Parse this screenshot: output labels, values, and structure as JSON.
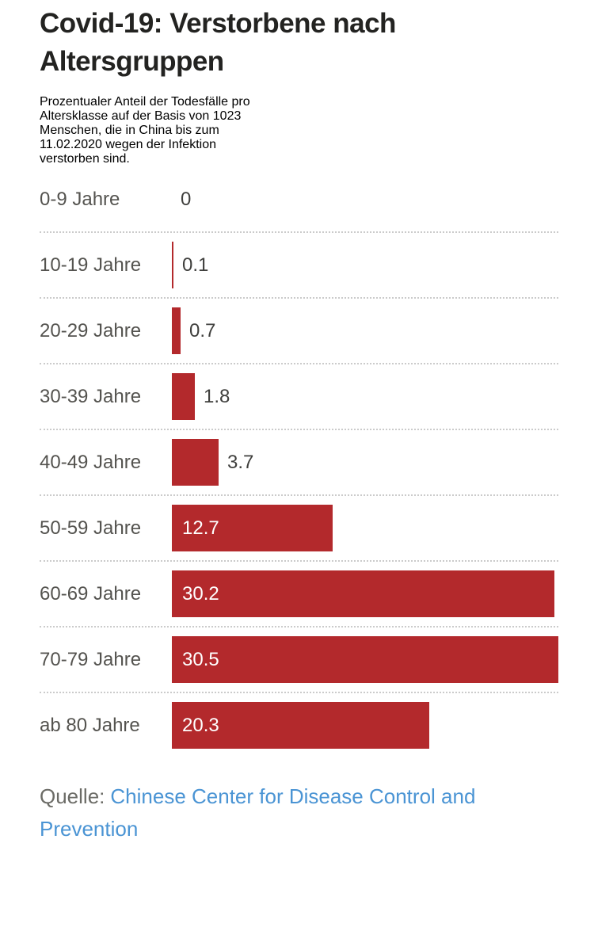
{
  "header": {
    "title": "Covid-19: Verstorbene nach Altersgruppen",
    "title_lines": [
      "Covid-19: Verstorbene nach",
      "Altersgruppen"
    ],
    "subtitle": "Prozentualer Anteil der Todesfälle pro Altersklasse auf der Basis von 1023 Menschen, die in China bis zum 11.02.2020 wegen der Infektion verstorben sind.",
    "subtitle_lines": [
      "Prozentualer Anteil der Todesfälle pro",
      "Altersklasse auf der Basis von 1023",
      "Menschen, die in China bis zum",
      "11.02.2020 wegen der Infektion",
      "verstorben sind."
    ]
  },
  "chart_data": {
    "type": "bar",
    "orientation": "horizontal",
    "title": "Covid-19: Verstorbene nach Altersgruppen",
    "categories": [
      "0-9 Jahre",
      "10-19 Jahre",
      "20-29 Jahre",
      "30-39 Jahre",
      "40-49 Jahre",
      "50-59 Jahre",
      "60-69 Jahre",
      "70-79 Jahre",
      "ab 80 Jahre"
    ],
    "values": [
      0,
      0.1,
      0.7,
      1.8,
      3.7,
      12.7,
      30.2,
      30.5,
      20.3
    ],
    "value_labels": [
      "0",
      "0.1",
      "0.7",
      "1.8",
      "3.7",
      "12.7",
      "30.2",
      "30.5",
      "20.3"
    ],
    "xlabel": "",
    "ylabel": "",
    "xlim": [
      0,
      30.5
    ],
    "unit": "Prozent",
    "bar_color": "#b3292c",
    "grid": "dotted horizontal separators between rows",
    "legend": "none",
    "value_label_placement": "inside bar (white) for large bars, right of bar (gray) for small bars"
  },
  "source": {
    "prefix": "Quelle:",
    "link_text": "Chinese Center for Disease Control and Prevention",
    "link_line1": "Chinese Center for Disease Control and",
    "link_line2": "Prevention",
    "link_color": "#4a94d4"
  }
}
